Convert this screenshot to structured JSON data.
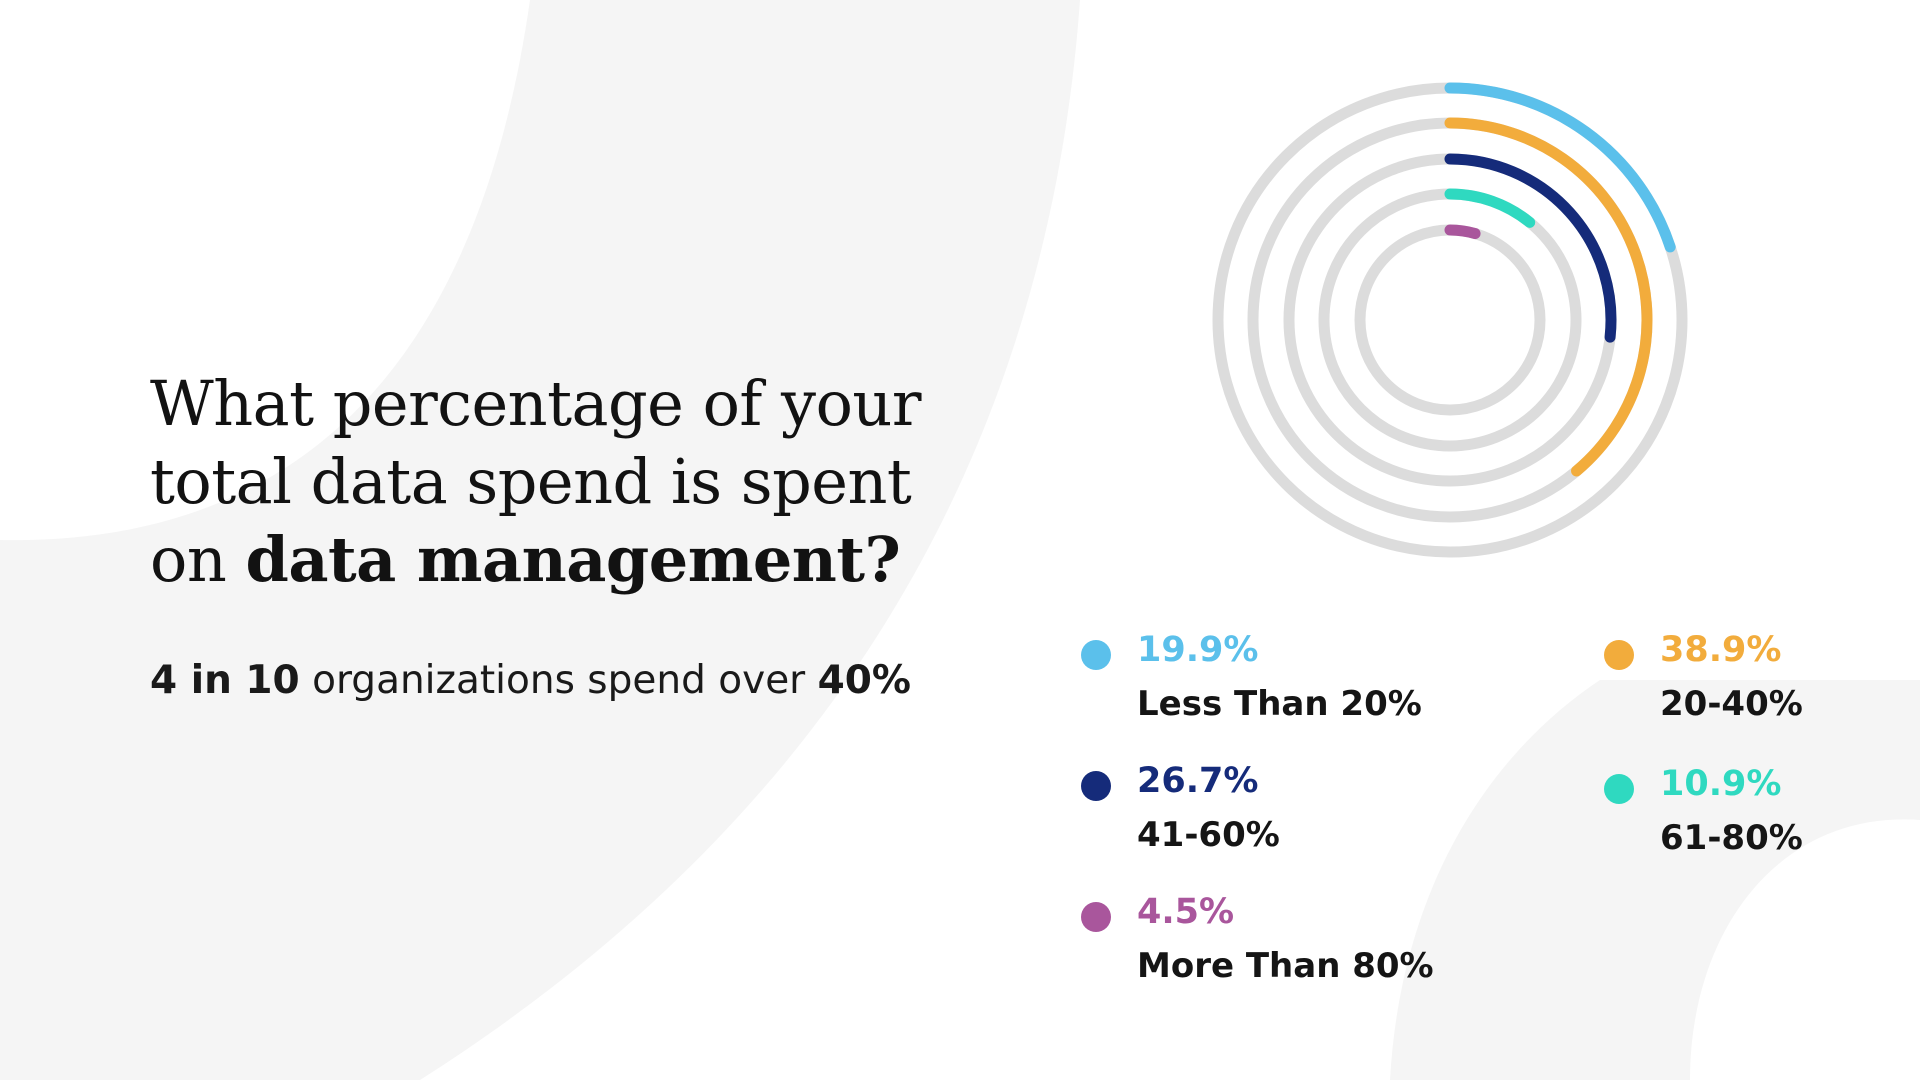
{
  "heading": {
    "line1": "What percentage of your",
    "line2": "total data spend is spent",
    "line3_prefix": "on ",
    "line3_bold": "data management?"
  },
  "subheading": {
    "bold1": "4 in 10",
    "normal": " organizations spend over ",
    "bold2": "40%"
  },
  "colors": {
    "track": "#dcdcdc",
    "background_swoosh": "#f4f4f4"
  },
  "chart_data": {
    "type": "radial-bar",
    "series": [
      {
        "value": 19.9,
        "label": "19.9%",
        "category": "Less Than 20%",
        "color": "#5bc0eb"
      },
      {
        "value": 38.9,
        "label": "38.9%",
        "category": "20-40%",
        "color": "#f2ac3c"
      },
      {
        "value": 26.7,
        "label": "26.7%",
        "category": "41-60%",
        "color": "#152b7a"
      },
      {
        "value": 10.9,
        "label": "10.9%",
        "category": "61-80%",
        "color": "#2fd9c0"
      },
      {
        "value": 4.5,
        "label": "4.5%",
        "category": "More Than 80%",
        "color": "#a9569c"
      }
    ],
    "max": 100,
    "start_angle": "top",
    "direction": "clockwise"
  }
}
